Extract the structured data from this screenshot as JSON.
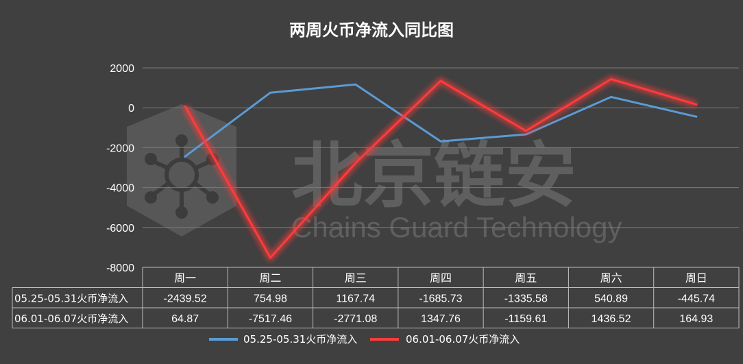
{
  "colors": {
    "background": "#404040",
    "series1": "#5b9bd5",
    "series2": "#ff3b3b",
    "grid": "#7a7a7a"
  },
  "watermark": {
    "cn": "北京链安",
    "en": "Chains Guard Technology"
  },
  "chart_data": {
    "type": "line",
    "title": "两周火币净流入同比图",
    "categories": [
      "周一",
      "周二",
      "周三",
      "周四",
      "周五",
      "周六",
      "周日"
    ],
    "ylim": [
      -8000,
      2000
    ],
    "yticks": [
      2000,
      0,
      -2000,
      -4000,
      -6000,
      -8000
    ],
    "grid": true,
    "legend": "bottom",
    "data_table": true,
    "series": [
      {
        "name": "05.25-05.31火币净流入",
        "values": [
          -2439.52,
          754.98,
          1167.74,
          -1685.73,
          -1335.58,
          540.89,
          -445.74
        ],
        "labels": [
          "-2439.52",
          "754.98",
          "1167.74",
          "-1685.73",
          "-1335.58",
          "540.89",
          "-445.74"
        ]
      },
      {
        "name": "06.01-06.07火币净流入",
        "values": [
          64.87,
          -7517.46,
          -2771.08,
          1347.76,
          -1159.61,
          1436.52,
          164.93
        ],
        "labels": [
          "64.87",
          "-7517.46",
          "-2771.08",
          "1347.76",
          "-1159.61",
          "1436.52",
          "164.93"
        ]
      }
    ]
  }
}
